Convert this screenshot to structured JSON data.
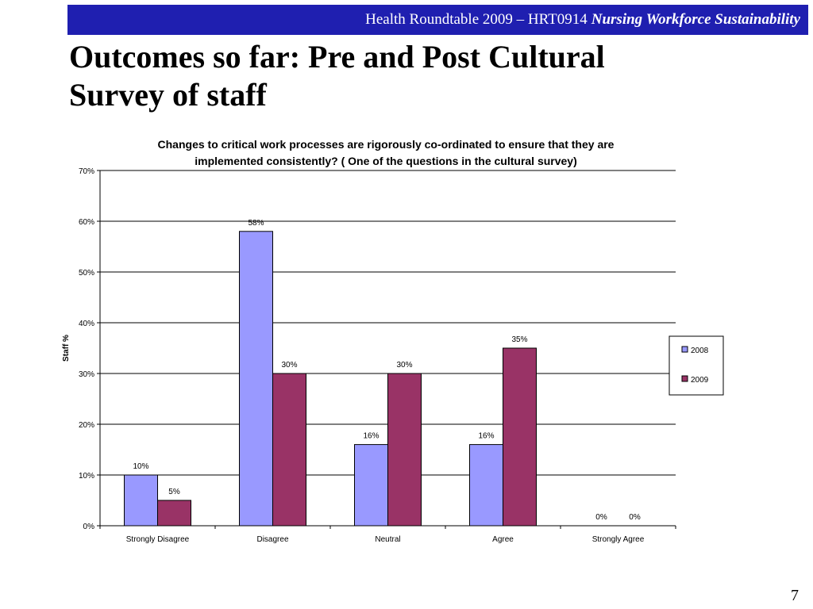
{
  "header": {
    "org": "Health Roundtable  2009 – HRT0914",
    "topic": "Nursing Workforce Sustainability"
  },
  "slide": {
    "title_line1": "Outcomes so far: Pre and Post Cultural",
    "title_line2": "Survey of staff",
    "page_number": "7"
  },
  "colors": {
    "header_bg": "#1f1fb0",
    "series_2008": "#9999ff",
    "series_2009": "#993366"
  },
  "chart_data": {
    "type": "bar",
    "title_line1": "Changes to critical work processes are rigorously co-ordinated to ensure that they are",
    "title_line2": "implemented consistently? ( One of the questions in the cultural survey)",
    "xlabel": "",
    "ylabel": "Staff %",
    "categories": [
      "Strongly Disagree",
      "Disagree",
      "Neutral",
      "Agree",
      "Strongly Agree"
    ],
    "series": [
      {
        "name": "2008",
        "values": [
          10,
          58,
          16,
          16,
          0
        ],
        "labels": [
          "10%",
          "58%",
          "16%",
          "16%",
          "0%"
        ]
      },
      {
        "name": "2009",
        "values": [
          5,
          30,
          30,
          35,
          0
        ],
        "labels": [
          "5%",
          "30%",
          "30%",
          "35%",
          "0%"
        ]
      }
    ],
    "ylim": [
      0,
      70
    ],
    "yticks": [
      0,
      10,
      20,
      30,
      40,
      50,
      60,
      70
    ],
    "ytick_labels": [
      "0%",
      "10%",
      "20%",
      "30%",
      "40%",
      "50%",
      "60%",
      "70%"
    ],
    "grid": true,
    "legend_position": "right"
  }
}
